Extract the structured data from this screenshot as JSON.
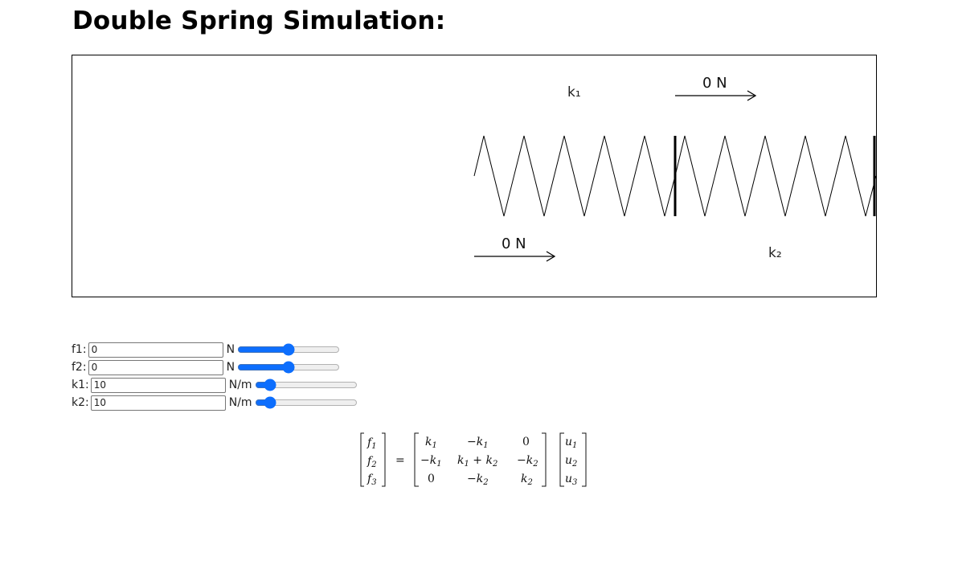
{
  "page": {
    "title": "Double Spring Simulation:"
  },
  "simulation": {
    "label_k1": "k₁",
    "label_k2": "k₂",
    "force_top": "0 N",
    "force_bottom": "0 N"
  },
  "controls": [
    {
      "label": "f1:",
      "value": "0",
      "unit": "N",
      "slider_fraction": 0.5
    },
    {
      "label": "f2:",
      "value": "0",
      "unit": "N",
      "slider_fraction": 0.5
    },
    {
      "label": "k1:",
      "value": "10",
      "unit": "N/m",
      "slider_fraction": 0.1
    },
    {
      "label": "k2:",
      "value": "10",
      "unit": "N/m",
      "slider_fraction": 0.1
    }
  ],
  "equation": {
    "lhs": [
      "f",
      "f",
      "f"
    ],
    "lhs_sub": [
      "1",
      "2",
      "3"
    ],
    "equals": "=",
    "row1": [
      "k1",
      "−k1",
      "0"
    ],
    "row2": [
      "−k1",
      "k1 + k2",
      "−k2"
    ],
    "row3": [
      "0",
      "−k2",
      "k2"
    ],
    "rhs": [
      "u",
      "u",
      "u"
    ],
    "rhs_sub": [
      "1",
      "2",
      "3"
    ]
  },
  "colors": {
    "slider_accent": "#0d6efd",
    "spring_line": "#000000"
  }
}
